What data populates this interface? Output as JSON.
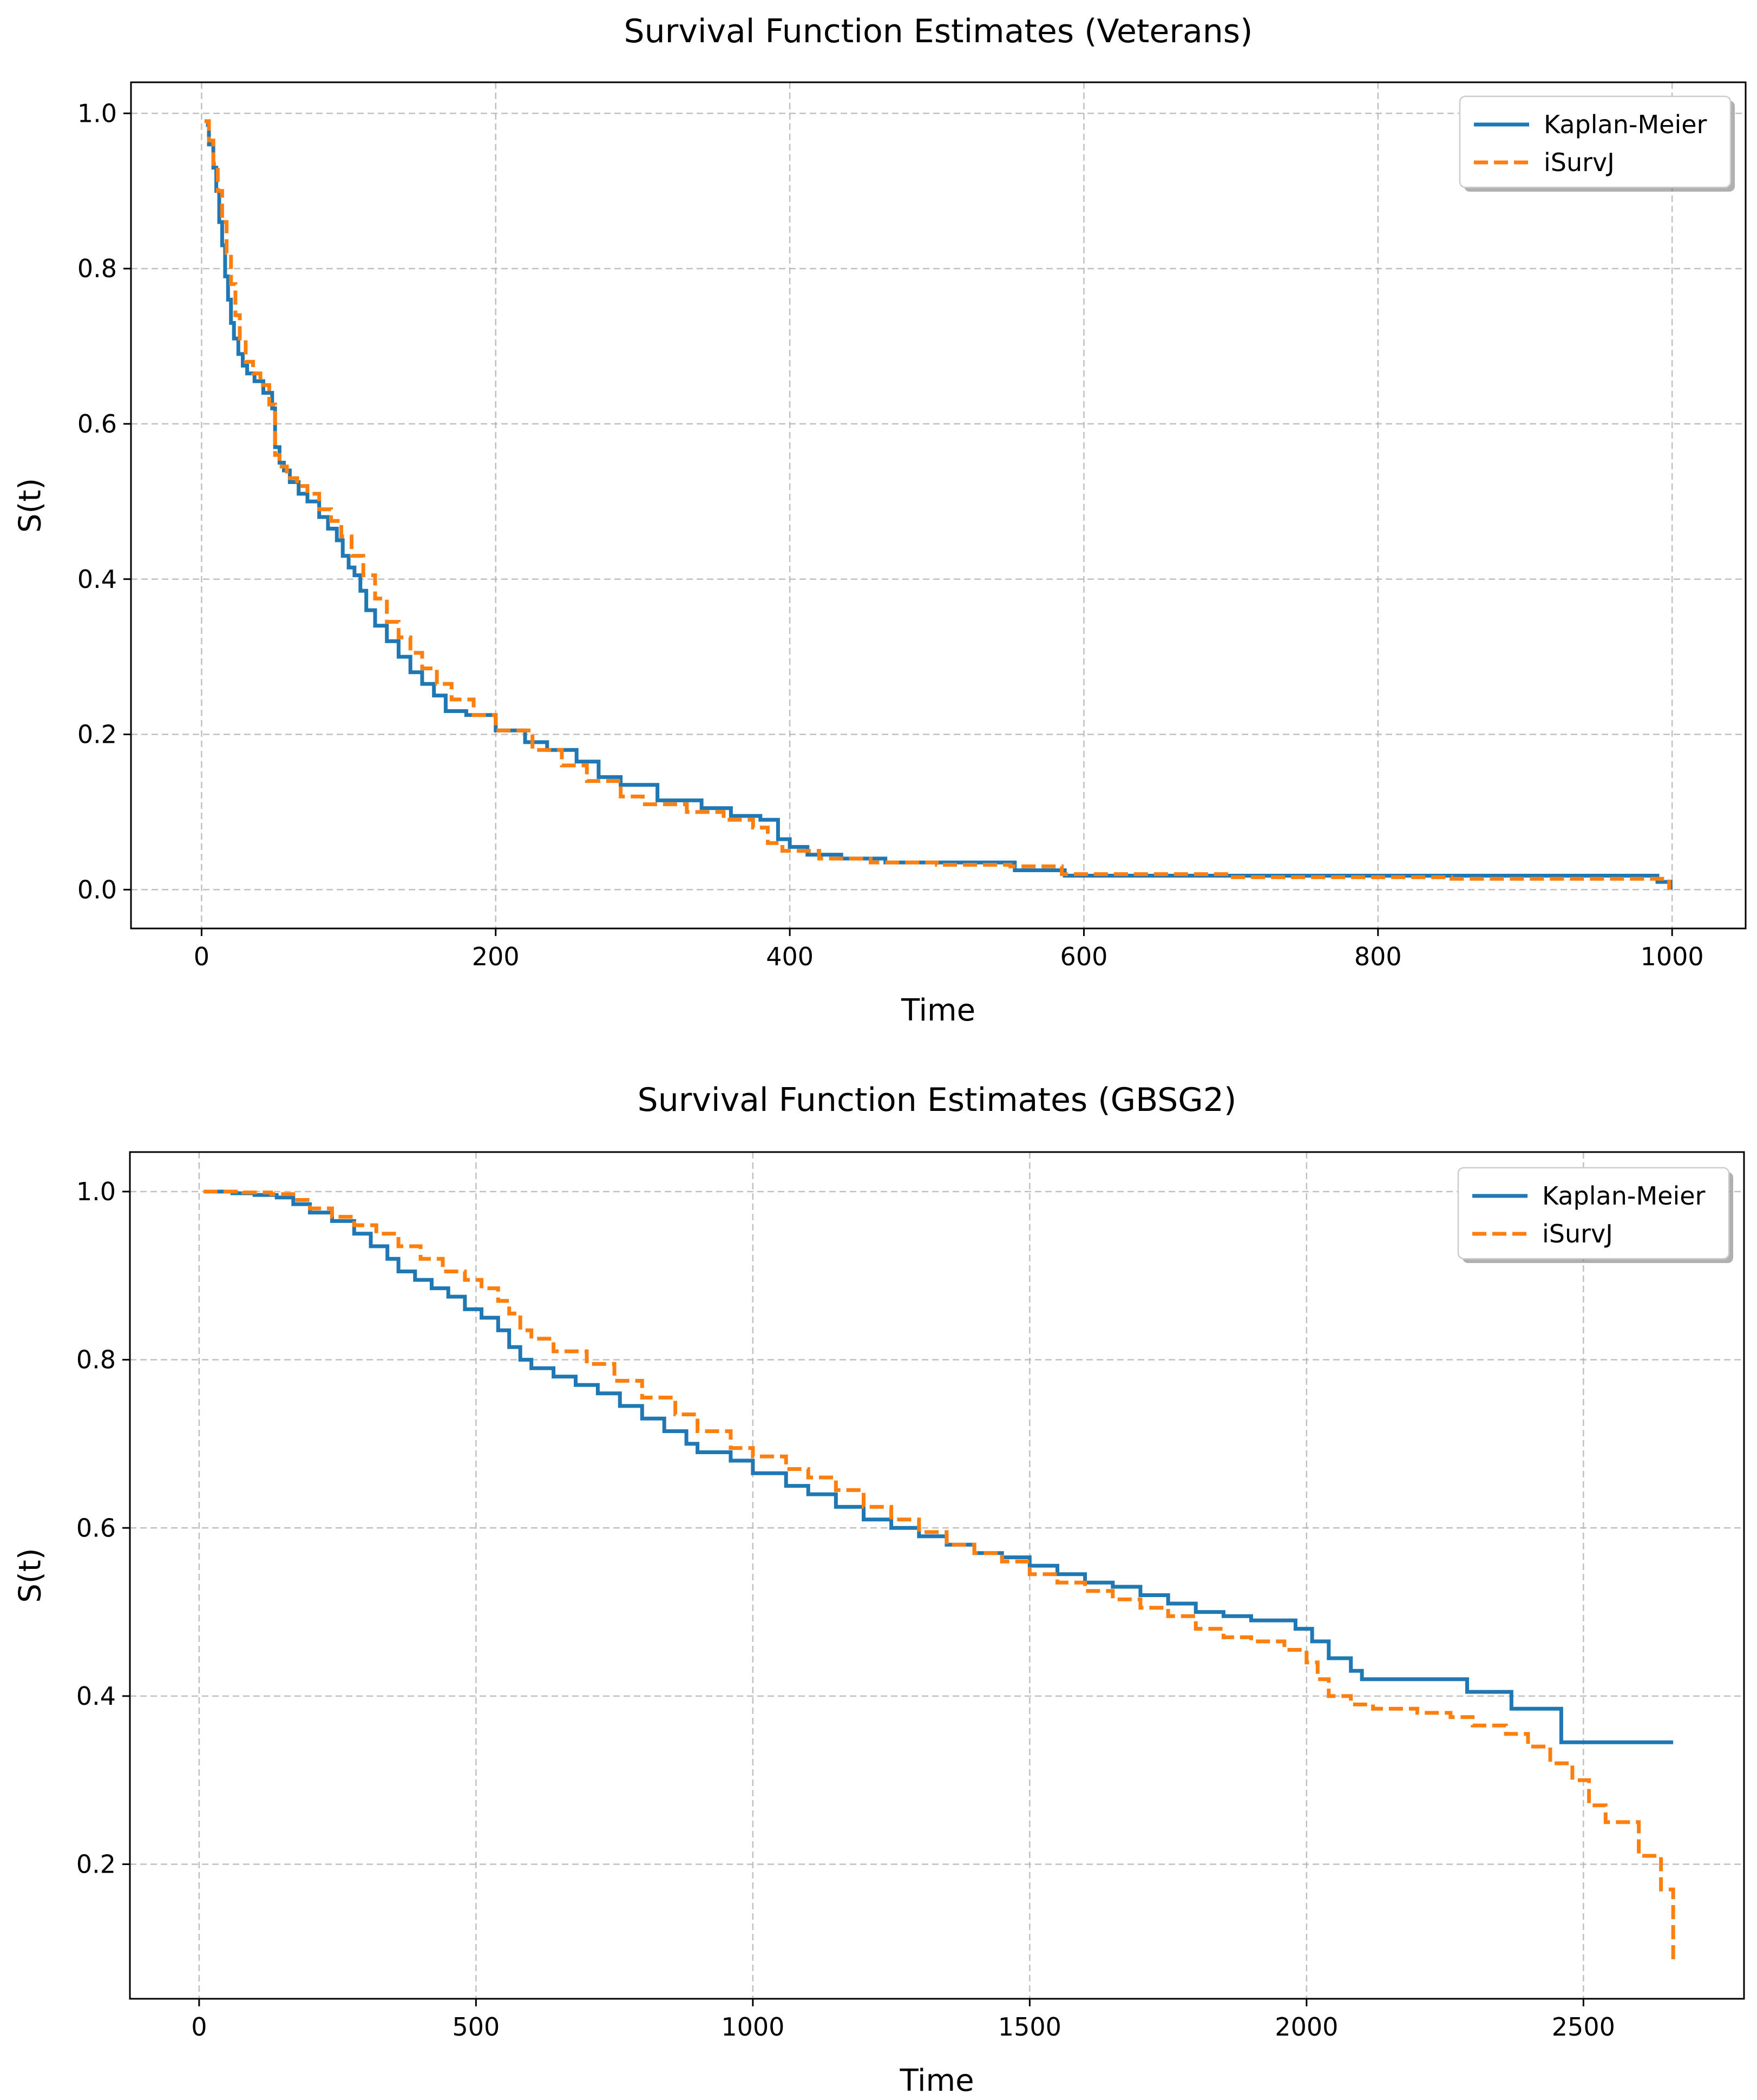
{
  "chart_data": [
    {
      "type": "line",
      "title": "Survival Function Estimates (Veterans)",
      "xlabel": "Time",
      "ylabel": "S(t)",
      "xlim": [
        -48,
        1050
      ],
      "ylim": [
        -0.05,
        1.04
      ],
      "xticks": [
        0,
        200,
        400,
        600,
        800,
        1000
      ],
      "yticks": [
        0.0,
        0.2,
        0.4,
        0.6,
        0.8,
        1.0
      ],
      "xtick_labels": [
        "0",
        "200",
        "400",
        "600",
        "800",
        "1000"
      ],
      "ytick_labels": [
        "0.0",
        "0.2",
        "0.4",
        "0.6",
        "0.8",
        "1.0"
      ],
      "grid": true,
      "legend_position": "top-right",
      "series": [
        {
          "name": "Kaplan-Meier",
          "color": "#1f77b4",
          "style": "solid-step",
          "x": [
            3,
            5,
            8,
            10,
            12,
            14,
            16,
            18,
            20,
            22,
            25,
            28,
            31,
            36,
            42,
            48,
            50,
            53,
            56,
            60,
            66,
            72,
            80,
            86,
            92,
            96,
            100,
            104,
            108,
            112,
            118,
            126,
            134,
            142,
            150,
            158,
            166,
            180,
            200,
            220,
            235,
            255,
            270,
            285,
            310,
            340,
            360,
            380,
            392,
            400,
            412,
            435,
            465,
            553,
            587,
            990,
            999
          ],
          "y": [
            0.985,
            0.96,
            0.93,
            0.9,
            0.86,
            0.83,
            0.79,
            0.76,
            0.73,
            0.71,
            0.69,
            0.675,
            0.665,
            0.655,
            0.64,
            0.62,
            0.57,
            0.55,
            0.54,
            0.525,
            0.51,
            0.5,
            0.48,
            0.465,
            0.45,
            0.43,
            0.415,
            0.405,
            0.385,
            0.36,
            0.34,
            0.32,
            0.3,
            0.28,
            0.265,
            0.25,
            0.23,
            0.225,
            0.205,
            0.19,
            0.18,
            0.165,
            0.145,
            0.135,
            0.115,
            0.105,
            0.095,
            0.09,
            0.065,
            0.055,
            0.045,
            0.04,
            0.035,
            0.025,
            0.018,
            0.01,
            0.0
          ]
        },
        {
          "name": "iSurvJ",
          "color": "#ff7f0e",
          "style": "dashed-step",
          "x": [
            2,
            5,
            8,
            11,
            14,
            17,
            20,
            23,
            26,
            30,
            35,
            40,
            46,
            50,
            53,
            58,
            65,
            72,
            80,
            88,
            95,
            102,
            110,
            118,
            126,
            134,
            142,
            150,
            160,
            170,
            185,
            200,
            225,
            245,
            262,
            285,
            300,
            330,
            355,
            375,
            385,
            395,
            420,
            455,
            500,
            550,
            585,
            700,
            850,
            998
          ],
          "y": [
            0.99,
            0.965,
            0.935,
            0.9,
            0.86,
            0.82,
            0.78,
            0.74,
            0.71,
            0.68,
            0.665,
            0.65,
            0.625,
            0.56,
            0.545,
            0.53,
            0.52,
            0.51,
            0.49,
            0.475,
            0.455,
            0.43,
            0.405,
            0.375,
            0.345,
            0.325,
            0.305,
            0.285,
            0.265,
            0.245,
            0.225,
            0.205,
            0.18,
            0.16,
            0.14,
            0.12,
            0.11,
            0.1,
            0.09,
            0.08,
            0.06,
            0.05,
            0.04,
            0.035,
            0.032,
            0.03,
            0.02,
            0.016,
            0.014,
            0.0
          ]
        }
      ]
    },
    {
      "type": "line",
      "title": "Survival Function Estimates (GBSG2)",
      "xlabel": "Time",
      "ylabel": "S(t)",
      "xlim": [
        -125,
        2790
      ],
      "ylim": [
        0.04,
        1.047
      ],
      "xticks": [
        0,
        500,
        1000,
        1500,
        2000,
        2500
      ],
      "yticks": [
        0.2,
        0.4,
        0.6,
        0.8,
        1.0
      ],
      "xtick_labels": [
        "0",
        "500",
        "1000",
        "1500",
        "2000",
        "2500"
      ],
      "ytick_labels": [
        "0.2",
        "0.4",
        "0.6",
        "0.8",
        "1.0"
      ],
      "grid": true,
      "legend_position": "top-right",
      "series": [
        {
          "name": "Kaplan-Meier",
          "color": "#1f77b4",
          "style": "solid-step",
          "x": [
            8,
            60,
            100,
            140,
            170,
            200,
            240,
            280,
            310,
            340,
            360,
            390,
            420,
            450,
            480,
            510,
            540,
            560,
            580,
            600,
            640,
            680,
            720,
            760,
            800,
            840,
            880,
            900,
            960,
            1000,
            1060,
            1100,
            1150,
            1200,
            1250,
            1300,
            1350,
            1400,
            1450,
            1500,
            1550,
            1600,
            1650,
            1700,
            1750,
            1800,
            1850,
            1900,
            1980,
            2010,
            2040,
            2080,
            2100,
            2160,
            2290,
            2370,
            2460,
            2662
          ],
          "y": [
            1.0,
            0.998,
            0.996,
            0.993,
            0.985,
            0.975,
            0.965,
            0.95,
            0.935,
            0.92,
            0.905,
            0.895,
            0.885,
            0.875,
            0.86,
            0.85,
            0.835,
            0.815,
            0.8,
            0.79,
            0.78,
            0.77,
            0.76,
            0.745,
            0.73,
            0.715,
            0.7,
            0.69,
            0.68,
            0.665,
            0.65,
            0.64,
            0.625,
            0.61,
            0.6,
            0.59,
            0.58,
            0.57,
            0.565,
            0.555,
            0.545,
            0.535,
            0.53,
            0.52,
            0.51,
            0.5,
            0.495,
            0.49,
            0.48,
            0.465,
            0.445,
            0.43,
            0.42,
            0.42,
            0.405,
            0.385,
            0.345,
            0.345
          ]
        },
        {
          "name": "iSurvJ",
          "color": "#ff7f0e",
          "style": "dashed-step",
          "x": [
            8,
            80,
            130,
            170,
            200,
            240,
            280,
            320,
            360,
            400,
            440,
            480,
            510,
            540,
            560,
            580,
            600,
            640,
            700,
            750,
            800,
            860,
            900,
            960,
            1000,
            1060,
            1100,
            1150,
            1200,
            1250,
            1300,
            1350,
            1400,
            1450,
            1500,
            1550,
            1600,
            1650,
            1700,
            1750,
            1800,
            1850,
            1900,
            1960,
            2000,
            2020,
            2040,
            2080,
            2120,
            2200,
            2260,
            2300,
            2360,
            2400,
            2440,
            2480,
            2510,
            2540,
            2600,
            2640,
            2662
          ],
          "y": [
            1.0,
            0.999,
            0.997,
            0.99,
            0.98,
            0.97,
            0.96,
            0.95,
            0.935,
            0.92,
            0.905,
            0.895,
            0.885,
            0.87,
            0.855,
            0.835,
            0.825,
            0.81,
            0.795,
            0.775,
            0.755,
            0.735,
            0.715,
            0.695,
            0.685,
            0.67,
            0.66,
            0.645,
            0.625,
            0.61,
            0.595,
            0.58,
            0.57,
            0.56,
            0.545,
            0.535,
            0.525,
            0.515,
            0.505,
            0.495,
            0.48,
            0.47,
            0.465,
            0.455,
            0.44,
            0.42,
            0.4,
            0.39,
            0.385,
            0.38,
            0.375,
            0.365,
            0.355,
            0.34,
            0.32,
            0.3,
            0.27,
            0.25,
            0.21,
            0.17,
            0.08
          ]
        }
      ]
    }
  ]
}
